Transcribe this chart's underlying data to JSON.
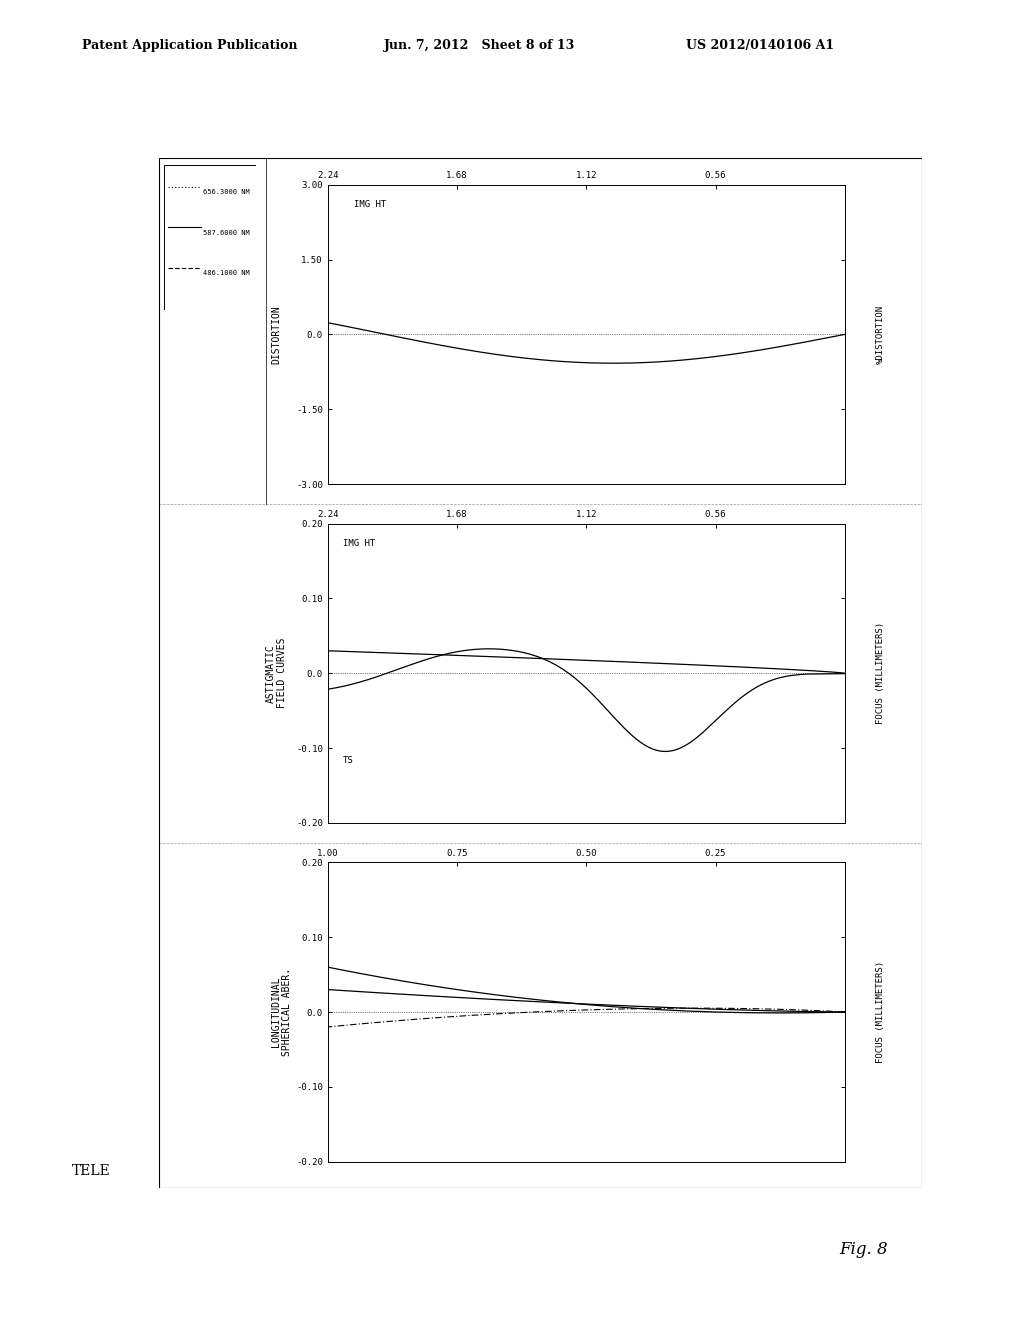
{
  "header_left": "Patent Application Publication",
  "header_mid": "Jun. 7, 2012   Sheet 8 of 13",
  "header_right": "US 2012/0140106 A1",
  "footer_label": "TELE",
  "fig_label": "Fig. 8",
  "wavelengths": [
    "656.3000 NM",
    "587.6000 NM",
    "486.1000 NM"
  ],
  "plot1_title_line1": "LONGITUDINAL",
  "plot1_title_line2": "SPHERICAL ABER.",
  "plot1_ylabel": "FOCUS (MILLIMETERS)",
  "plot1_ylim": [
    -0.2,
    0.2
  ],
  "plot1_yticks": [
    -0.2,
    -0.1,
    0.0,
    0.1,
    0.2
  ],
  "plot1_xlim": [
    0.0,
    1.0
  ],
  "plot1_xticks": [
    0.25,
    0.5,
    0.75,
    1.0
  ],
  "plot1_xtick_labels": [
    "0.25",
    "0.50",
    "0.75",
    "1.00"
  ],
  "plot2_title_line1": "ASTIGMATIC",
  "plot2_title_line2": "FIELD CURVES",
  "plot2_ylabel": "FOCUS (MILLIMETERS)",
  "plot2_ylim": [
    -0.2,
    0.2
  ],
  "plot2_yticks": [
    -0.2,
    -0.1,
    0.0,
    0.1,
    0.2
  ],
  "plot2_xlim": [
    0.0,
    2.24
  ],
  "plot2_xticks": [
    0.56,
    1.12,
    1.68,
    2.24
  ],
  "plot2_xtick_labels": [
    "0.56",
    "1.12",
    "1.68",
    "2.24"
  ],
  "plot3_title": "DISTORTION",
  "plot3_ylabel": "%DISTORTION",
  "plot3_ylim": [
    -3.0,
    3.0
  ],
  "plot3_yticks": [
    -3.0,
    -1.5,
    0.0,
    1.5,
    3.0
  ],
  "plot3_xlim": [
    0.0,
    2.24
  ],
  "plot3_xticks": [
    0.56,
    1.12,
    1.68,
    2.24
  ],
  "plot3_xtick_labels": [
    "0.56",
    "1.12",
    "1.68",
    "2.24"
  ],
  "background_color": "#ffffff"
}
